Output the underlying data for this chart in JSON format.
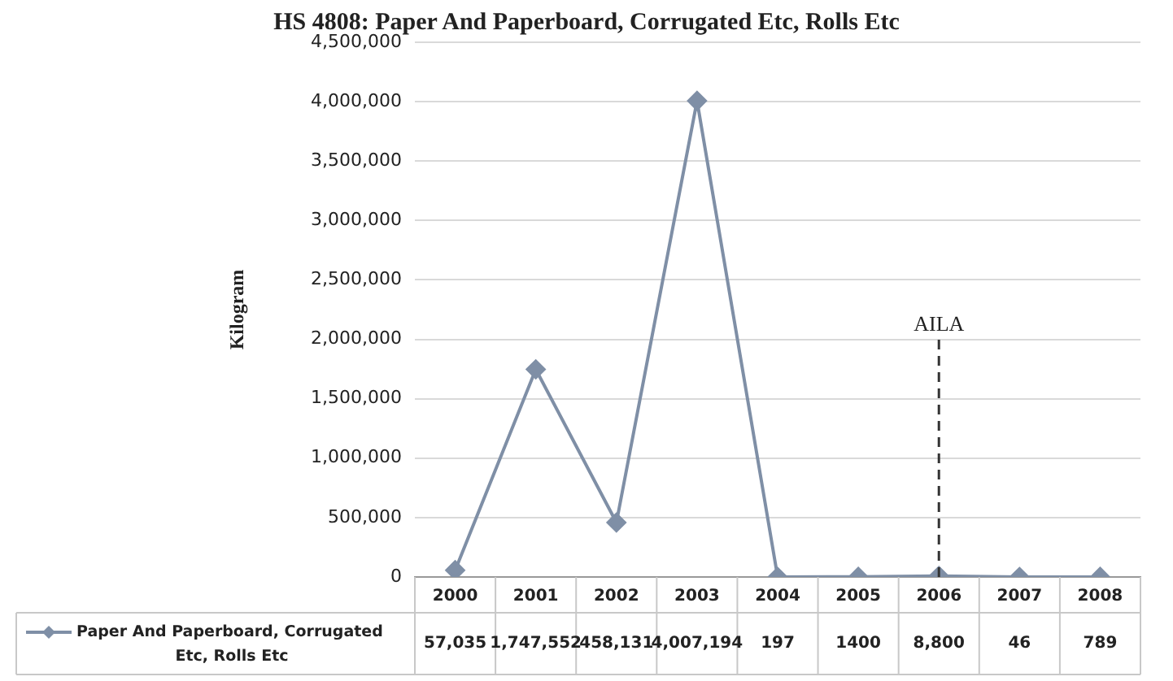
{
  "chart_data": {
    "type": "line",
    "title": "HS 4808: Paper And Paperboard, Corrugated Etc, Rolls Etc",
    "ylabel": "Kilogram",
    "categories": [
      "2000",
      "2001",
      "2002",
      "2003",
      "2004",
      "2005",
      "2006",
      "2007",
      "2008"
    ],
    "series": [
      {
        "name": "Paper And Paperboard, Corrugated Etc, Rolls Etc",
        "color": "#7f8fa6",
        "values": [
          57035,
          1747552,
          458131,
          4007194,
          197,
          1400,
          8800,
          46,
          789
        ],
        "value_labels": [
          "57,035",
          "1,747,552",
          "458,131",
          "4,007,194",
          "197",
          "1400",
          "8,800",
          "46",
          "789"
        ]
      }
    ],
    "ylim": [
      0,
      4500000
    ],
    "yticks": [
      {
        "value": 0,
        "label": "0"
      },
      {
        "value": 500000,
        "label": "500,000"
      },
      {
        "value": 1000000,
        "label": "1,000,000"
      },
      {
        "value": 1500000,
        "label": "1,500,000"
      },
      {
        "value": 2000000,
        "label": "2,000,000"
      },
      {
        "value": 2500000,
        "label": "2,500,000"
      },
      {
        "value": 3000000,
        "label": "3,000,000"
      },
      {
        "value": 3500000,
        "label": "3,500,000"
      },
      {
        "value": 4000000,
        "label": "4,000,000"
      },
      {
        "value": 4500000,
        "label": "4,500,000"
      }
    ],
    "grid": "y",
    "marker": "diamond",
    "line_style": "solid",
    "ref_lines": [
      {
        "axis": "x",
        "value": "2006",
        "label": "AILA",
        "line_style": "dashed",
        "color": "#333333"
      }
    ]
  }
}
